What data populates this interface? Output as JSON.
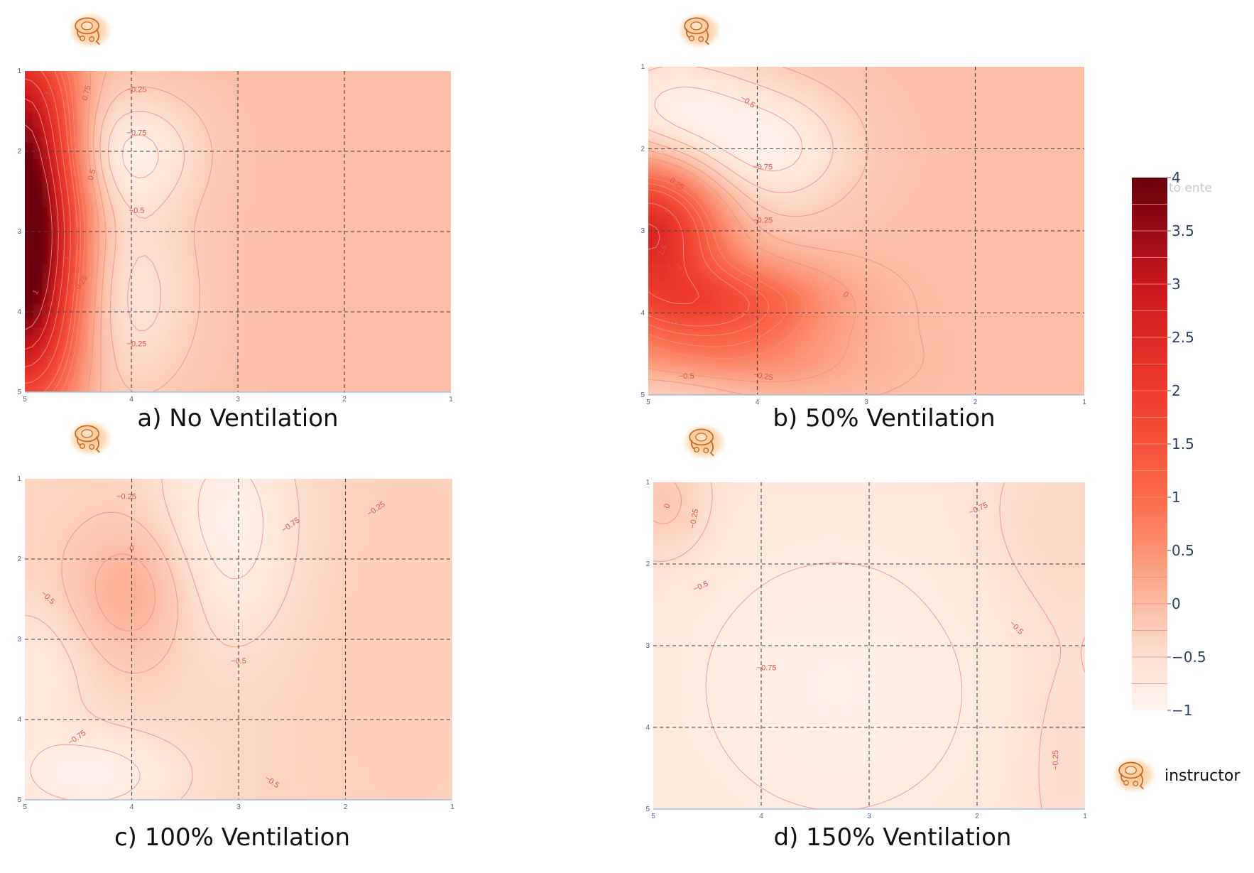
{
  "chart_data": {
    "type": "heatmap",
    "shared_colorscale": {
      "min": -1,
      "max": 4,
      "ticks": [
        "4",
        "3.5",
        "3",
        "2.5",
        "2",
        "1.5",
        "1",
        "0.5",
        "0",
        "−0.5",
        "−1"
      ],
      "tick_values": [
        4,
        3.5,
        3,
        2.5,
        2,
        1.5,
        1,
        0.5,
        0,
        -0.5,
        -1
      ],
      "stops": [
        {
          "value": -1,
          "color": "#fff5f0"
        },
        {
          "value": -0.5,
          "color": "#fde0d2"
        },
        {
          "value": 0,
          "color": "#fcbba1"
        },
        {
          "value": 0.5,
          "color": "#fc9272"
        },
        {
          "value": 1,
          "color": "#fb6a4a"
        },
        {
          "value": 2,
          "color": "#ef3b2c"
        },
        {
          "value": 3,
          "color": "#cb181d"
        },
        {
          "value": 4,
          "color": "#67000d"
        }
      ],
      "faded_text": "to ente"
    },
    "legend": {
      "icon": "instructor-icon",
      "label": "instructor"
    },
    "panels": [
      {
        "id": "a",
        "caption": "a) No Ventilation",
        "x_ticks": [
          "5",
          "4",
          "3",
          "2",
          "1"
        ],
        "y_ticks": [
          "1",
          "2",
          "3",
          "4",
          "5"
        ],
        "instructor_icon": "instructor-icon",
        "hotspots": [
          {
            "x": 5.0,
            "y": 3.0,
            "amp": 4.6,
            "sx": 0.35,
            "sy": 1.1
          },
          {
            "x": 5.0,
            "y": 1.3,
            "amp": 1.6,
            "sx": 0.3,
            "sy": 0.7
          },
          {
            "x": 5.0,
            "y": 4.5,
            "amp": 1.2,
            "sx": 0.35,
            "sy": 0.7
          },
          {
            "x": 4.0,
            "y": 2.0,
            "amp": -0.75,
            "sx": 0.45,
            "sy": 0.5
          },
          {
            "x": 4.0,
            "y": 3.8,
            "amp": -0.55,
            "sx": 0.45,
            "sy": 0.9
          }
        ],
        "base": -0.05,
        "contour_labels": [
          {
            "text": "1.5",
            "x": 4.75,
            "y": 1.25,
            "rot": -70
          },
          {
            "text": "0.75",
            "x": 4.4,
            "y": 1.28,
            "rot": -75
          },
          {
            "text": "−0.25",
            "x": 3.95,
            "y": 1.26,
            "rot": 0
          },
          {
            "text": "−0.75",
            "x": 3.95,
            "y": 1.8,
            "rot": 0
          },
          {
            "text": "0.5",
            "x": 4.35,
            "y": 2.3,
            "rot": -75
          },
          {
            "text": "−0.5",
            "x": 3.95,
            "y": 2.77,
            "rot": 0
          },
          {
            "text": "1.25",
            "x": 4.55,
            "y": 3.3,
            "rot": -55
          },
          {
            "text": "0.25",
            "x": 4.45,
            "y": 3.65,
            "rot": -55
          },
          {
            "text": "1",
            "x": 4.88,
            "y": 3.77,
            "rot": -60
          },
          {
            "text": "−0.25",
            "x": 3.95,
            "y": 4.43,
            "rot": 0
          },
          {
            "text": "0",
            "x": 4.75,
            "y": 4.6,
            "rot": -60
          }
        ]
      },
      {
        "id": "b",
        "caption": "b) 50% Ventilation",
        "x_ticks": [
          "5",
          "4",
          "3",
          "2",
          "1"
        ],
        "y_ticks": [
          "1",
          "2",
          "3",
          "4",
          "5"
        ],
        "instructor_icon": "instructor-icon",
        "hotspots": [
          {
            "x": 5.0,
            "y": 3.0,
            "amp": 2.6,
            "sx": 0.45,
            "sy": 0.55
          },
          {
            "x": 4.4,
            "y": 3.9,
            "amp": 1.6,
            "sx": 0.7,
            "sy": 0.35
          },
          {
            "x": 4.3,
            "y": 4.6,
            "amp": 0.6,
            "sx": 0.8,
            "sy": 0.3
          },
          {
            "x": 3.9,
            "y": 2.0,
            "amp": -0.8,
            "sx": 0.55,
            "sy": 0.55
          },
          {
            "x": 4.8,
            "y": 1.5,
            "amp": -0.7,
            "sx": 0.5,
            "sy": 0.5
          },
          {
            "x": 4.8,
            "y": 4.95,
            "amp": -0.4,
            "sx": 0.6,
            "sy": 0.25
          }
        ],
        "base": -0.05,
        "contour_labels": [
          {
            "text": "−0.5",
            "x": 4.1,
            "y": 1.45,
            "rot": 35
          },
          {
            "text": "−0.75",
            "x": 3.95,
            "y": 2.25,
            "rot": 0
          },
          {
            "text": "0.25",
            "x": 4.75,
            "y": 2.45,
            "rot": 35
          },
          {
            "text": "−0.25",
            "x": 3.95,
            "y": 2.9,
            "rot": 0
          },
          {
            "text": "1.25",
            "x": 4.8,
            "y": 2.8,
            "rot": 35
          },
          {
            "text": "1.5",
            "x": 4.85,
            "y": 3.25,
            "rot": -60
          },
          {
            "text": "1",
            "x": 4.7,
            "y": 3.45,
            "rot": -40
          },
          {
            "text": "0",
            "x": 3.2,
            "y": 3.8,
            "rot": 35
          },
          {
            "text": "0.5",
            "x": 4.75,
            "y": 4.15,
            "rot": 0
          },
          {
            "text": "0.75",
            "x": 4.05,
            "y": 4.1,
            "rot": 0
          },
          {
            "text": "−0.5",
            "x": 4.65,
            "y": 4.8,
            "rot": 0
          },
          {
            "text": "−0.25",
            "x": 3.95,
            "y": 4.8,
            "rot": 10
          }
        ]
      },
      {
        "id": "c",
        "caption": "c) 100% Ventilation",
        "x_ticks": [
          "5",
          "4",
          "3",
          "2",
          "1"
        ],
        "y_ticks": [
          "1",
          "2",
          "3",
          "4",
          "5"
        ],
        "instructor_icon": "instructor-icon",
        "hotspots": [
          {
            "x": 4.0,
            "y": 2.4,
            "amp": 0.55,
            "sx": 0.4,
            "sy": 0.6
          },
          {
            "x": 1.4,
            "y": 3.0,
            "amp": 0.1,
            "sx": 0.8,
            "sy": 2.0
          },
          {
            "x": 3.1,
            "y": 1.6,
            "amp": -0.55,
            "sx": 0.45,
            "sy": 1.0
          },
          {
            "x": 4.4,
            "y": 4.7,
            "amp": -0.55,
            "sx": 0.6,
            "sy": 0.4
          },
          {
            "x": 4.9,
            "y": 3.4,
            "amp": -0.35,
            "sx": 0.35,
            "sy": 0.6
          }
        ],
        "base": -0.35,
        "contour_labels": [
          {
            "text": "−0.25",
            "x": 4.05,
            "y": 1.25,
            "rot": 0
          },
          {
            "text": "0",
            "x": 4.0,
            "y": 1.9,
            "rot": 0
          },
          {
            "text": "−0.75",
            "x": 2.5,
            "y": 1.6,
            "rot": -35
          },
          {
            "text": "−0.25",
            "x": 1.7,
            "y": 1.4,
            "rot": -35
          },
          {
            "text": "−0.5",
            "x": 4.8,
            "y": 2.5,
            "rot": 45
          },
          {
            "text": "−0.5",
            "x": 3.0,
            "y": 3.3,
            "rot": 0
          },
          {
            "text": "−0.75",
            "x": 4.5,
            "y": 4.25,
            "rot": -35
          },
          {
            "text": "−0.5",
            "x": 2.7,
            "y": 4.8,
            "rot": 35
          }
        ]
      },
      {
        "id": "d",
        "caption": "d) 150% Ventilation",
        "x_ticks": [
          "5",
          "4",
          "3",
          "2",
          "1"
        ],
        "y_ticks": [
          "1",
          "2",
          "3",
          "4",
          "5"
        ],
        "instructor_icon": "instructor-icon",
        "hotspots": [
          {
            "x": 4.9,
            "y": 1.25,
            "amp": 0.45,
            "sx": 0.3,
            "sy": 0.5
          },
          {
            "x": 1.2,
            "y": 1.5,
            "amp": 0.25,
            "sx": 0.55,
            "sy": 0.8
          },
          {
            "x": 1.2,
            "y": 4.3,
            "amp": 0.2,
            "sx": 0.35,
            "sy": 1.2
          },
          {
            "x": 3.3,
            "y": 3.5,
            "amp": -0.25,
            "sx": 1.2,
            "sy": 1.5
          }
        ],
        "base": -0.6,
        "contour_labels": [
          {
            "text": "0",
            "x": 4.85,
            "y": 1.3,
            "rot": -70
          },
          {
            "text": "−0.25",
            "x": 4.6,
            "y": 1.45,
            "rot": -80
          },
          {
            "text": "−0.5",
            "x": 4.55,
            "y": 2.3,
            "rot": -25
          },
          {
            "text": "−0.75",
            "x": 1.98,
            "y": 1.35,
            "rot": -25
          },
          {
            "text": "−0.5",
            "x": 1.65,
            "y": 2.8,
            "rot": 45
          },
          {
            "text": "−0.75",
            "x": 3.95,
            "y": 3.3,
            "rot": 0
          },
          {
            "text": "−0.25",
            "x": 1.25,
            "y": 4.4,
            "rot": -90
          }
        ]
      }
    ]
  }
}
